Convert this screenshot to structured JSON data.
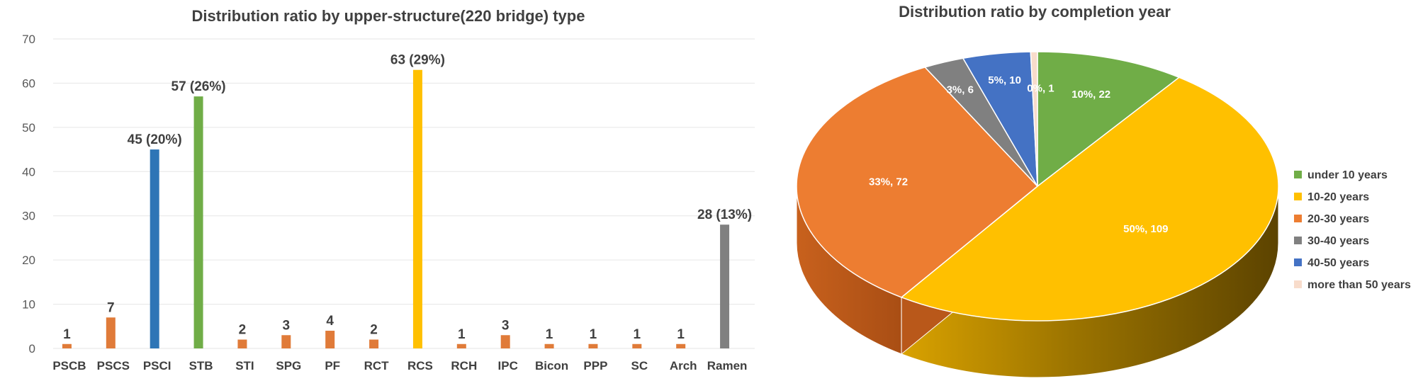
{
  "chart_data": [
    {
      "type": "bar",
      "title": "Distribution ratio by upper-structure(220 bridge) type",
      "ylim": [
        0,
        70
      ],
      "yticks": [
        0,
        10,
        20,
        30,
        40,
        50,
        60,
        70
      ],
      "grid": true,
      "categories": [
        "PSCB",
        "PSCS",
        "PSCI",
        "STB",
        "STI",
        "SPG",
        "PF",
        "RCT",
        "RCS",
        "RCH",
        "IPC",
        "Bicon",
        "PPP",
        "SC",
        "Arch",
        "Ramen"
      ],
      "values": [
        1,
        7,
        45,
        57,
        2,
        3,
        4,
        2,
        63,
        1,
        3,
        1,
        1,
        1,
        1,
        28
      ],
      "labels": [
        "1",
        "7",
        "45 (20%)",
        "57 (26%)",
        "2",
        "3",
        "4",
        "2",
        "63 (29%)",
        "1",
        "3",
        "1",
        "1",
        "1",
        "1",
        "28 (13%)"
      ],
      "colors": [
        "#e07b39",
        "#e07b39",
        "#2e75b6",
        "#70ad47",
        "#e07b39",
        "#e07b39",
        "#e07b39",
        "#e07b39",
        "#ffc000",
        "#e07b39",
        "#e07b39",
        "#e07b39",
        "#e07b39",
        "#e07b39",
        "#e07b39",
        "#808080"
      ]
    },
    {
      "type": "pie",
      "title": "Distribution ratio by completion year",
      "legend_position": "right",
      "slices": [
        {
          "name": "under 10 years",
          "value": 22,
          "percent": "10%",
          "label": "10%, 22",
          "color": "#70ad47"
        },
        {
          "name": "10-20 years",
          "value": 109,
          "percent": "50%",
          "label": "50%, 109",
          "color": "#ffc000"
        },
        {
          "name": "20-30 years",
          "value": 72,
          "percent": "33%",
          "label": "33%, 72",
          "color": "#ed7d31"
        },
        {
          "name": "30-40 years",
          "value": 6,
          "percent": "3%",
          "label": "3%, 6",
          "color": "#808080"
        },
        {
          "name": "40-50 years",
          "value": 10,
          "percent": "5%",
          "label": "5%, 10",
          "color": "#4472c4"
        },
        {
          "name": "more than 50 years",
          "value": 1,
          "percent": "0%",
          "label": "0%, 1",
          "color": "#f8dccb"
        }
      ]
    }
  ]
}
